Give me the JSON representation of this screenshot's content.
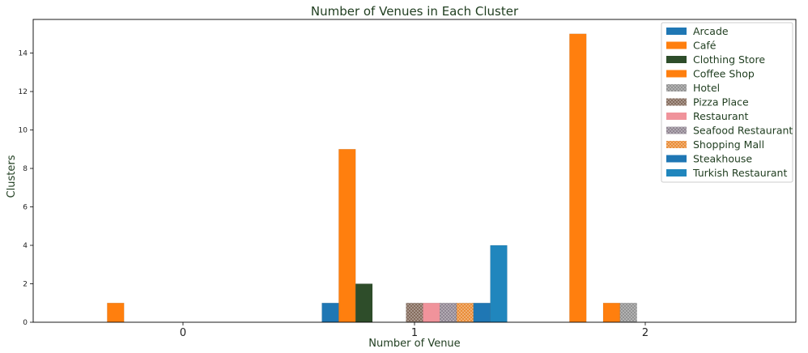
{
  "chart_data": {
    "type": "bar",
    "title": "Number of Venues in Each Cluster",
    "xlabel": "Number of Venue",
    "ylabel": "Clusters",
    "categories": [
      "0",
      "1",
      "2"
    ],
    "yticks": [
      "0",
      "2",
      "4",
      "6",
      "8",
      "10",
      "12",
      "14"
    ],
    "ylim": [
      0,
      15.75
    ],
    "grid": false,
    "legend_position": "top-right",
    "series": [
      {
        "name": "Arcade",
        "color": "#1f77b4",
        "values": [
          0,
          1,
          0
        ]
      },
      {
        "name": "Café",
        "color": "#ff7f0e",
        "values": [
          1,
          9,
          15
        ]
      },
      {
        "name": "Clothing Store",
        "color": "#2e4d2a",
        "values": [
          0,
          2,
          0
        ]
      },
      {
        "name": "Coffee Shop",
        "color": "#ff7f0e",
        "values": [
          0,
          0,
          1
        ]
      },
      {
        "name": "Hotel",
        "color": "#8c8c8c",
        "hatch": true,
        "values": [
          0,
          0,
          1
        ]
      },
      {
        "name": "Pizza Place",
        "color": "#7d6353",
        "hatch": true,
        "values": [
          0,
          1,
          0
        ]
      },
      {
        "name": "Restaurant",
        "color": "#f0939b",
        "values": [
          0,
          1,
          0
        ]
      },
      {
        "name": "Seafood Restaurant",
        "color": "#8a7f8c",
        "hatch": true,
        "values": [
          0,
          1,
          0
        ]
      },
      {
        "name": "Shopping Mall",
        "color": "#e8862c",
        "hatch": true,
        "values": [
          0,
          1,
          0
        ]
      },
      {
        "name": "Steakhouse",
        "color": "#1f77b4",
        "values": [
          0,
          1,
          0
        ]
      },
      {
        "name": "Turkish Restaurant",
        "color": "#2086bd",
        "values": [
          0,
          4,
          0
        ]
      }
    ]
  }
}
